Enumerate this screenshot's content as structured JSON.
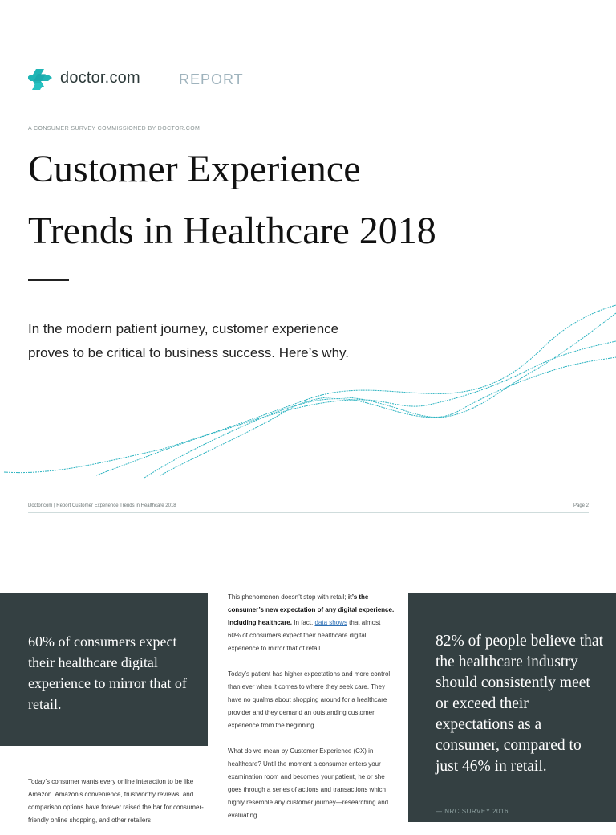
{
  "header": {
    "brand": "doctor.com",
    "report_label": "REPORT"
  },
  "cover": {
    "kicker": "A CONSUMER SURVEY COMMISSIONED BY DOCTOR.COM",
    "title_line1": "Customer Experience",
    "title_line2": "Trends in Healthcare 2018",
    "lede_line1": "In the modern patient journey, customer experience",
    "lede_line2": "proves to be critical to business success. Here’s why."
  },
  "footer": {
    "left": "Doctor.com  |  Report   Customer Experience Trends in Healthcare 2018",
    "right": "Page 2"
  },
  "left_panel": {
    "quote": "60% of consumers expect their healthcare digital experience to mirror that of retail."
  },
  "right_panel": {
    "quote": "82% of people believe that the healthcare industry should consistently meet or exceed their expectations as a consumer, compared to just 46% in retail.",
    "source": "— NRC SURVEY 2016"
  },
  "mid_column": {
    "p1_a": "This phenomenon doesn’t stop with retail; ",
    "p1_b": "it’s the consumer’s new expectation of any digital experience. Including healthcare.",
    "p1_c": " In fact, ",
    "p1_link": "data shows",
    "p1_d": " that almost 60% of consumers expect their healthcare digital experience to mirror that of retail.",
    "p2": "Today’s patient has higher expectations and more control than ever when it comes to where they seek care. They have no qualms about shopping around for a healthcare provider and they demand an outstanding customer experience from the beginning.",
    "p3": "What do we mean by Customer Experience (CX) in healthcare? Until the moment a consumer enters your examination room and becomes your patient, he or she goes through a series of actions and transactions which highly resemble any customer journey—researching and evaluating"
  },
  "left_column": {
    "text": "Today’s consumer wants every online interaction to be like Amazon. Amazon’s convenience, trustworthy reviews, and comparison options have forever raised the bar for consumer-friendly online shopping, and other retailers"
  },
  "colors": {
    "panel": "#344042",
    "brand_teal": "#1fb5b5",
    "wave": "#2bb3c0",
    "link": "#2c6fb4"
  }
}
